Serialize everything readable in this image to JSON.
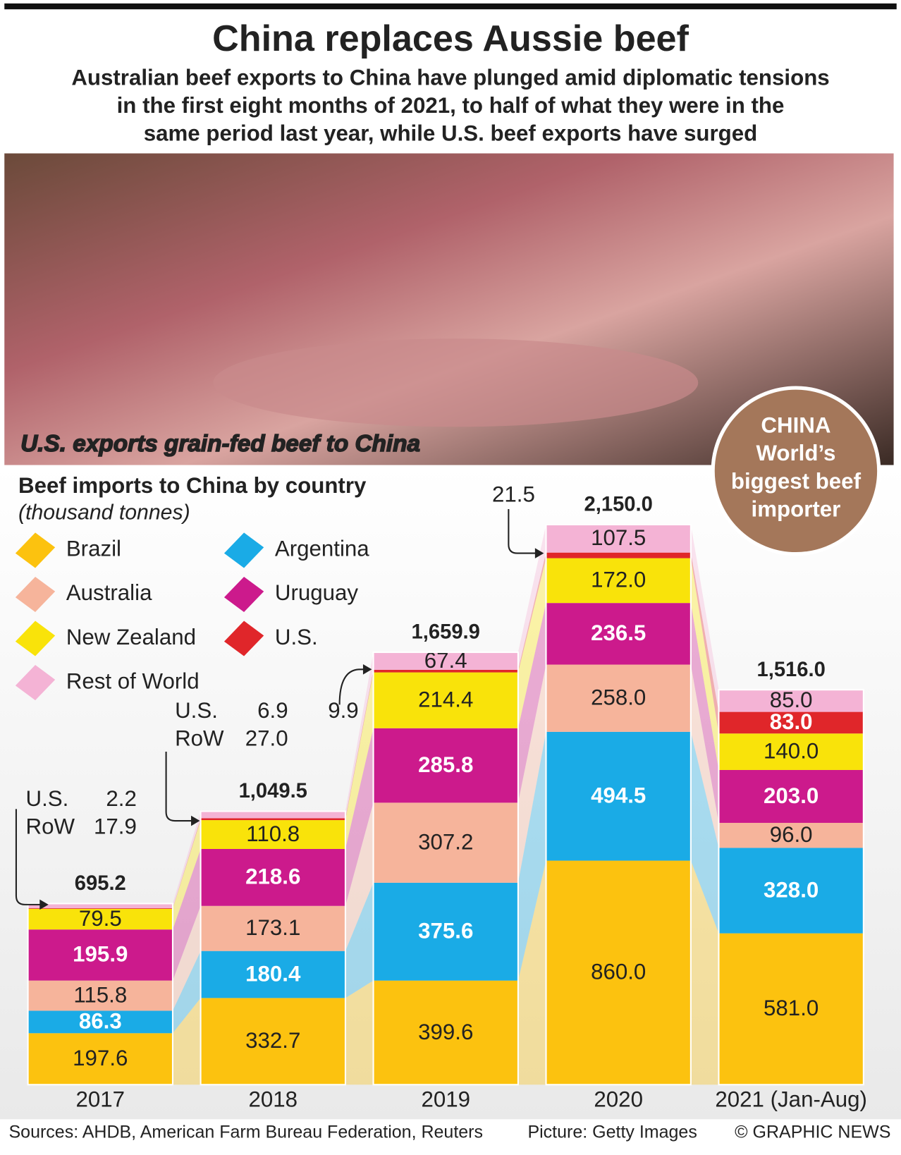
{
  "header": {
    "title": "China replaces Aussie beef",
    "subtitle_lines": [
      "Australian beef exports to China have plunged amid diplomatic tensions",
      "in the first eight months of 2021, to half of what they were in the",
      "same period last year, while U.S. beef exports have surged"
    ]
  },
  "picture": {
    "caption": "U.S. exports grain-fed beef to China"
  },
  "badge": {
    "lines": [
      "CHINA",
      "World’s",
      "biggest beef",
      "importer"
    ]
  },
  "chart_data": {
    "type": "stacked_bar",
    "title": "Beef imports to China by country",
    "subtitle": "(thousand tonnes)",
    "categories": [
      "2017",
      "2018",
      "2019",
      "2020",
      "2021 (Jan-Aug)"
    ],
    "series": [
      {
        "name": "Brazil",
        "color": "#fcc20f",
        "label_color": "#222222",
        "label_weight": "normal",
        "values": [
          197.6,
          332.7,
          399.6,
          860.0,
          581.0
        ],
        "value_labels": [
          "197.6",
          "332.7",
          "399.6",
          "860.0",
          "581.0"
        ]
      },
      {
        "name": "Argentina",
        "color": "#1aabe6",
        "label_color": "#ffffff",
        "label_weight": "bold",
        "values": [
          86.3,
          180.4,
          375.6,
          494.5,
          328.0
        ],
        "value_labels": [
          "86.3",
          "180.4",
          "375.6",
          "494.5",
          "328.0"
        ]
      },
      {
        "name": "Australia",
        "color": "#f6b49b",
        "label_color": "#222222",
        "label_weight": "normal",
        "values": [
          115.8,
          173.1,
          307.2,
          258.0,
          96.0
        ],
        "value_labels": [
          "115.8",
          "173.1",
          "307.2",
          "258.0",
          "96.0"
        ]
      },
      {
        "name": "Uruguay",
        "color": "#cc1a8c",
        "label_color": "#ffffff",
        "label_weight": "bold",
        "values": [
          195.9,
          218.6,
          285.8,
          236.5,
          203.0
        ],
        "value_labels": [
          "195.9",
          "218.6",
          "285.8",
          "236.5",
          "203.0"
        ]
      },
      {
        "name": "New Zealand",
        "color": "#f9e30a",
        "label_color": "#222222",
        "label_weight": "normal",
        "values": [
          79.5,
          110.8,
          214.4,
          172.0,
          140.0
        ],
        "value_labels": [
          "79.5",
          "110.8",
          "214.4",
          "172.0",
          "140.0"
        ]
      },
      {
        "name": "U.S.",
        "color": "#e0262a",
        "label_color": "#ffffff",
        "label_weight": "bold",
        "values": [
          2.2,
          6.9,
          9.9,
          21.5,
          83.0
        ],
        "value_labels": [
          "2.2",
          "6.9",
          "9.9",
          "21.5",
          "83.0"
        ]
      },
      {
        "name": "Rest of World",
        "short_name": "RoW",
        "color": "#f4b3d5",
        "label_color": "#222222",
        "label_weight": "normal",
        "values": [
          17.9,
          27.0,
          67.4,
          107.5,
          85.0
        ],
        "value_labels": [
          "17.9",
          "27.0",
          "67.4",
          "107.5",
          "85.0"
        ]
      }
    ],
    "totals": [
      695.2,
      1049.5,
      1659.9,
      2150.0,
      1516.0
    ],
    "total_labels": [
      "695.2",
      "1,049.5",
      "1,659.9",
      "2,150.0",
      "1,516.0"
    ]
  },
  "footer": {
    "sources": "Sources: AHDB, American Farm Bureau Federation, Reuters",
    "picture_credit": "Picture: Getty Images",
    "copyright": "© GRAPHIC NEWS"
  }
}
